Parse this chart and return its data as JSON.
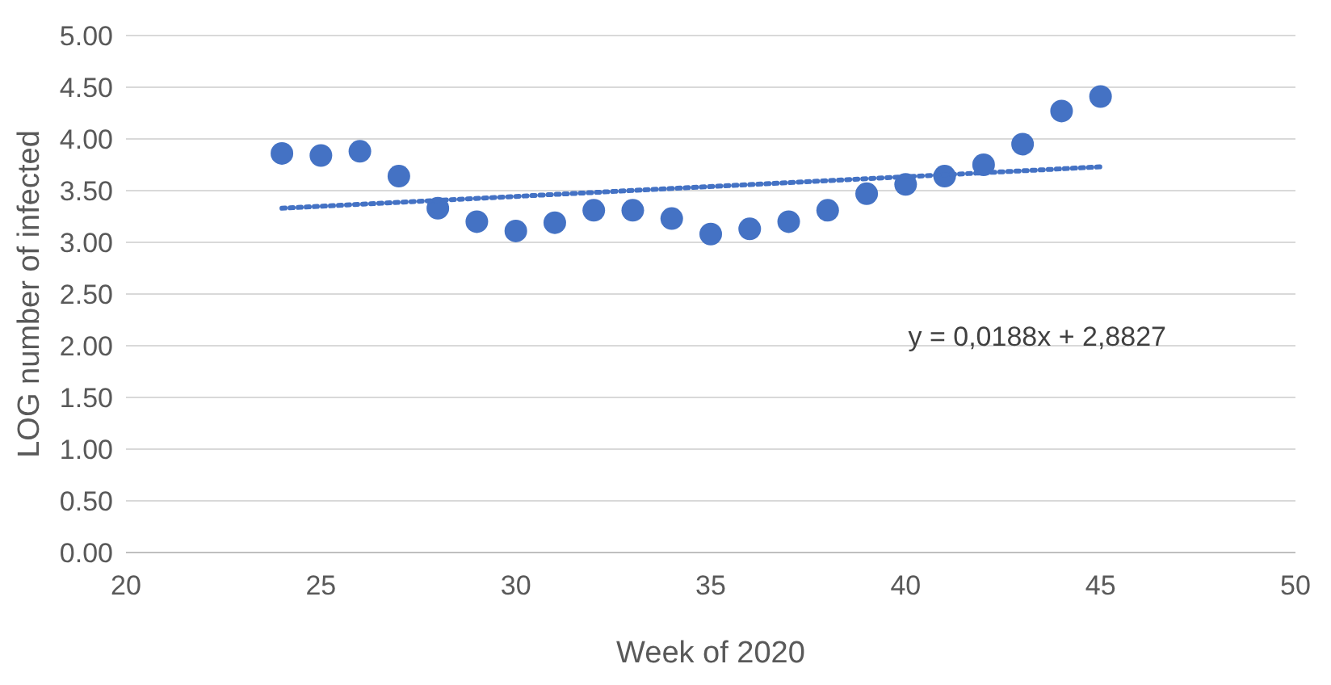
{
  "chart_data": {
    "type": "scatter",
    "xlabel": "Week of 2020",
    "ylabel": "LOG number of infected",
    "xlim": [
      20,
      50
    ],
    "xticks": [
      20,
      25,
      30,
      35,
      40,
      45,
      50
    ],
    "ylim": [
      0,
      5
    ],
    "yticks": [
      {
        "value": 0,
        "label": "0.00"
      },
      {
        "value": 0.5,
        "label": "0.50"
      },
      {
        "value": 1,
        "label": "1.00"
      },
      {
        "value": 1.5,
        "label": "1.50"
      },
      {
        "value": 2,
        "label": "2.00"
      },
      {
        "value": 2.5,
        "label": "2.50"
      },
      {
        "value": 3,
        "label": "3.00"
      },
      {
        "value": 3.5,
        "label": "3.50"
      },
      {
        "value": 4,
        "label": "4.00"
      },
      {
        "value": 4.5,
        "label": "4.50"
      },
      {
        "value": 5,
        "label": "5.00"
      }
    ],
    "grid": "y",
    "marker": "circle",
    "series": [
      {
        "color": "#4472c4",
        "x": [
          24,
          25,
          26,
          27,
          28,
          29,
          30,
          31,
          32,
          33,
          34,
          35,
          36,
          37,
          38,
          39,
          40,
          41,
          42,
          43,
          44,
          45
        ],
        "values": [
          3.86,
          3.84,
          3.88,
          3.64,
          3.33,
          3.2,
          3.11,
          3.19,
          3.31,
          3.31,
          3.23,
          3.08,
          3.13,
          3.2,
          3.31,
          3.47,
          3.56,
          3.64,
          3.75,
          3.95,
          4.27,
          4.41
        ]
      },
      {
        "type": "line",
        "color": "#4472c4",
        "line_style": "dotted",
        "marker": "none",
        "x": [
          24,
          45
        ],
        "values": [
          3.33,
          3.73
        ]
      }
    ],
    "annotations": [
      "y = 0,0188x + 2,8827"
    ]
  }
}
